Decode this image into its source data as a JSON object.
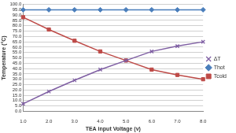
{
  "chart_data": {
    "type": "line",
    "x_label": "TEA input Voltage (v)",
    "y_label": "Temperature (°C)",
    "categories": [
      "1.0",
      "2.0",
      "3.0",
      "4.0",
      "5.0",
      "6.0",
      "7.0",
      "8.0"
    ],
    "series": [
      {
        "name": "ΔT",
        "color": "#7f5fa3",
        "marker": "x",
        "values": [
          7,
          18.5,
          29,
          39,
          47.5,
          56,
          61,
          65
        ]
      },
      {
        "name": "Thot",
        "color": "#4a7ebb",
        "marker": "diamond",
        "values": [
          95,
          95,
          95,
          95,
          95,
          95,
          95,
          95
        ]
      },
      {
        "name": "Tcold",
        "color": "#be4b48",
        "marker": "square",
        "values": [
          88,
          76.5,
          66,
          56,
          47.5,
          39,
          34,
          30
        ]
      }
    ],
    "ylim": [
      0,
      100
    ],
    "yticks": [
      {
        "value": 0,
        "label": "0.0"
      },
      {
        "value": 5,
        "label": "5.0"
      },
      {
        "value": 10,
        "label": "10.0"
      },
      {
        "value": 15,
        "label": "15.0"
      },
      {
        "value": 20,
        "label": "20.0"
      },
      {
        "value": 25,
        "label": "25.0"
      },
      {
        "value": 30,
        "label": "30.0"
      },
      {
        "value": 35,
        "label": "35.0"
      },
      {
        "value": 40,
        "label": "40.0"
      },
      {
        "value": 45,
        "label": "45.0"
      },
      {
        "value": 50,
        "label": "50.0"
      },
      {
        "value": 55,
        "label": "55.0"
      },
      {
        "value": 60,
        "label": "60.0"
      },
      {
        "value": 65,
        "label": "65.0"
      },
      {
        "value": 70,
        "label": "70.0"
      },
      {
        "value": 75,
        "label": "75.0"
      },
      {
        "value": 80,
        "label": "80.0"
      },
      {
        "value": 85,
        "label": "85.0"
      },
      {
        "value": 90,
        "label": "90.0"
      },
      {
        "value": 95,
        "label": "95.0"
      },
      {
        "value": 100,
        "label": "100.0"
      }
    ],
    "grid": true,
    "legend": "right"
  }
}
